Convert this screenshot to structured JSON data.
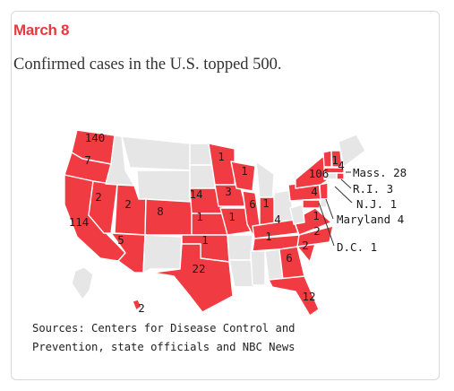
{
  "date": "March 8",
  "headline": "Confirmed cases in the U.S. topped 500.",
  "sources": [
    "Sources: Centers for Disease Control and",
    "Prevention, state officials and NBC News"
  ],
  "colors": {
    "accent": "#e8383d",
    "affected": "#f03b42",
    "unaffected": "#e6e6e6"
  },
  "states": {
    "WA": 140,
    "OR": 7,
    "CA": 114,
    "NV": 2,
    "UT": 2,
    "CO": 8,
    "NE": 14,
    "KS": 1,
    "OK": 1,
    "TX": 22,
    "MN": 1,
    "WI": 1,
    "IA": 3,
    "IL": 6,
    "IN": 1,
    "MO": 1,
    "KY": 4,
    "TN": 1,
    "GA": 6,
    "SC": 2,
    "NC": 2,
    "VA": 1,
    "FL": 12,
    "PA": 4,
    "NY": 106,
    "VT": 1,
    "NH": 4,
    "AZ": 5,
    "HI": 2,
    "MA": 28,
    "RI": 3,
    "NJ": 1,
    "MD": 4,
    "DC": 1
  },
  "labels": {
    "ma": "Mass. 28",
    "ri": "R.I. 3",
    "nj": "N.J. 1",
    "md": "Maryland 4",
    "dc": "D.C. 1"
  }
}
